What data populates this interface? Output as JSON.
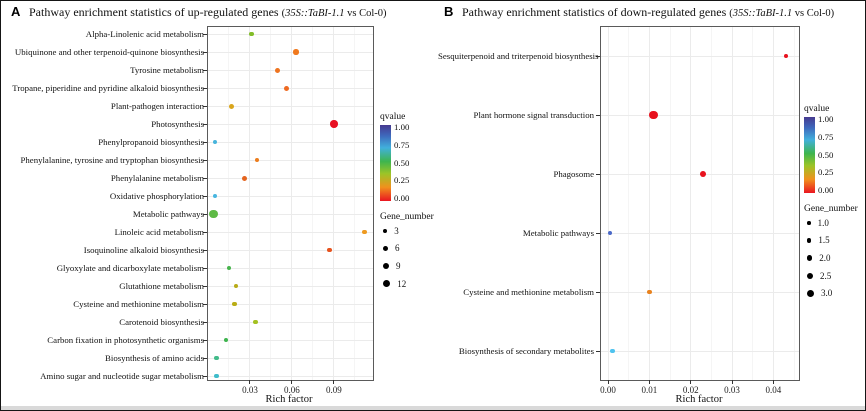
{
  "figure": {
    "background": "#ffffff",
    "colorbar_colors": [
      "#463a90",
      "#3e68bc",
      "#41b0dc",
      "#3eb54e",
      "#9cc427",
      "#f0911d",
      "#ea1621"
    ]
  },
  "chart_data": [
    {
      "type": "scatter",
      "panel_label": "A",
      "title": "Pathway enrichment statistics of up-regulated genes",
      "title_note_open": "(",
      "title_note_italic": "35S::TaBI-1.1",
      "title_note_rest": " vs Col-0)",
      "xlabel": "Rich factor",
      "x_range": [
        0,
        0.118
      ],
      "x_ticks": [
        {
          "v": 0.03,
          "label": "0.03"
        },
        {
          "v": 0.06,
          "label": "0.06"
        },
        {
          "v": 0.09,
          "label": "0.09"
        }
      ],
      "x_minor_ticks": [
        0.015,
        0.045,
        0.075,
        0.105
      ],
      "color_legend": {
        "title": "qvalue",
        "ticks": [
          "1.00",
          "0.75",
          "0.50",
          "0.25",
          "0.00"
        ]
      },
      "size_legend": {
        "title": "Gene_number",
        "items": [
          {
            "label": "3",
            "d": 4.2
          },
          {
            "label": "6",
            "d": 5.0
          },
          {
            "label": "9",
            "d": 6.0
          },
          {
            "label": "12",
            "d": 7.2
          }
        ]
      },
      "points": [
        {
          "category": "Alpha-Linolenic acid metabolism",
          "rich_factor": 0.031,
          "gene_number": 3,
          "qvalue": 0.3,
          "color": "#82bd28",
          "d": 4.6
        },
        {
          "category": "Ubiquinone and other terpenoid-quinone biosynthesis",
          "rich_factor": 0.063,
          "gene_number": 5,
          "qvalue": 0.1,
          "color": "#f0791e",
          "d": 5.2
        },
        {
          "category": "Tyrosine metabolism",
          "rich_factor": 0.05,
          "gene_number": 4,
          "qvalue": 0.1,
          "color": "#ee7420",
          "d": 5.0
        },
        {
          "category": "Tropane, piperidine and pyridine alkaloid biosynthesis",
          "rich_factor": 0.056,
          "gene_number": 4,
          "qvalue": 0.08,
          "color": "#ee6a22",
          "d": 5.0
        },
        {
          "category": "Plant-pathogen interaction",
          "rich_factor": 0.017,
          "gene_number": 4,
          "qvalue": 0.2,
          "color": "#d9a51c",
          "d": 5.0
        },
        {
          "category": "Photosynthesis",
          "rich_factor": 0.09,
          "gene_number": 9,
          "qvalue": 0.0,
          "color": "#e81123",
          "d": 7.4
        },
        {
          "category": "Phenylpropanoid biosynthesis",
          "rich_factor": 0.005,
          "gene_number": 3,
          "qvalue": 0.7,
          "color": "#47b4dc",
          "d": 4.4
        },
        {
          "category": "Phenylalanine, tyrosine and tryptophan biosynthesis",
          "rich_factor": 0.035,
          "gene_number": 3,
          "qvalue": 0.12,
          "color": "#ec7d1d",
          "d": 4.6
        },
        {
          "category": "Phenylalanine metabolism",
          "rich_factor": 0.026,
          "gene_number": 4,
          "qvalue": 0.08,
          "color": "#e4651f",
          "d": 5.0
        },
        {
          "category": "Oxidative phosphorylation",
          "rich_factor": 0.005,
          "gene_number": 3,
          "qvalue": 0.7,
          "color": "#48b6e0",
          "d": 4.4
        },
        {
          "category": "Metabolic pathways",
          "rich_factor": 0.004,
          "gene_number": 12,
          "qvalue": 0.4,
          "color": "#5eba46",
          "d": 8.6
        },
        {
          "category": "Linoleic acid metabolism",
          "rich_factor": 0.112,
          "gene_number": 3,
          "qvalue": 0.15,
          "color": "#ee9a20",
          "d": 4.6
        },
        {
          "category": "Isoquinoline alkaloid biosynthesis",
          "rich_factor": 0.087,
          "gene_number": 3,
          "qvalue": 0.05,
          "color": "#e7531e",
          "d": 4.6
        },
        {
          "category": "Glyoxylate and dicarboxylate metabolism",
          "rich_factor": 0.015,
          "gene_number": 3,
          "qvalue": 0.45,
          "color": "#47b44c",
          "d": 4.4
        },
        {
          "category": "Glutathione metabolism",
          "rich_factor": 0.02,
          "gene_number": 3,
          "qvalue": 0.22,
          "color": "#b8ab17",
          "d": 4.6
        },
        {
          "category": "Cysteine and methionine metabolism",
          "rich_factor": 0.019,
          "gene_number": 3,
          "qvalue": 0.22,
          "color": "#b9ad15",
          "d": 4.6
        },
        {
          "category": "Carotenoid biosynthesis",
          "rich_factor": 0.034,
          "gene_number": 3,
          "qvalue": 0.28,
          "color": "#a3c120",
          "d": 4.6
        },
        {
          "category": "Carbon fixation in photosynthetic organisms",
          "rich_factor": 0.013,
          "gene_number": 3,
          "qvalue": 0.45,
          "color": "#3eb44e",
          "d": 4.4
        },
        {
          "category": "Biosynthesis of amino acids",
          "rich_factor": 0.006,
          "gene_number": 3,
          "qvalue": 0.55,
          "color": "#43bb8a",
          "d": 4.6
        },
        {
          "category": "Amino sugar and nucleotide sugar metabolism",
          "rich_factor": 0.006,
          "gene_number": 3,
          "qvalue": 0.62,
          "color": "#3fbcca",
          "d": 4.6
        }
      ]
    },
    {
      "type": "scatter",
      "panel_label": "B",
      "title": "Pathway enrichment statistics of down-regulated genes",
      "title_note_open": "(",
      "title_note_italic": "35S::TaBI-1.1",
      "title_note_rest": " vs Col-0)",
      "xlabel": "Rich factor",
      "x_range": [
        -0.0017,
        0.0462
      ],
      "x_ticks": [
        {
          "v": 0.0,
          "label": "0.00"
        },
        {
          "v": 0.01,
          "label": "0.01"
        },
        {
          "v": 0.02,
          "label": "0.02"
        },
        {
          "v": 0.03,
          "label": "0.03"
        },
        {
          "v": 0.04,
          "label": "0.04"
        }
      ],
      "x_minor_ticks": [
        0.005,
        0.015,
        0.025,
        0.035,
        0.045
      ],
      "color_legend": {
        "title": "qvalue",
        "ticks": [
          "1.00",
          "0.75",
          "0.50",
          "0.25",
          "0.00"
        ]
      },
      "size_legend": {
        "title": "Gene_number",
        "items": [
          {
            "label": "1.0",
            "d": 3.6
          },
          {
            "label": "1.5",
            "d": 4.4
          },
          {
            "label": "2.0",
            "d": 5.2
          },
          {
            "label": "2.5",
            "d": 6.0
          },
          {
            "label": "3.0",
            "d": 7.0
          }
        ]
      },
      "points": [
        {
          "category": "Sesquiterpenoid and triterpenoid biosynthesis",
          "rich_factor": 0.043,
          "gene_number": 1,
          "qvalue": 0.0,
          "color": "#e8121e",
          "d": 4.4
        },
        {
          "category": "Plant hormone signal transduction",
          "rich_factor": 0.011,
          "gene_number": 3,
          "qvalue": 0.0,
          "color": "#e8121e",
          "d": 8.2
        },
        {
          "category": "Phagosome",
          "rich_factor": 0.023,
          "gene_number": 2,
          "qvalue": 0.0,
          "color": "#e8121e",
          "d": 5.8
        },
        {
          "category": "Metabolic pathways",
          "rich_factor": 0.0005,
          "gene_number": 1,
          "qvalue": 0.85,
          "color": "#4a69c8",
          "d": 4.8
        },
        {
          "category": "Cysteine and methionine metabolism",
          "rich_factor": 0.01,
          "gene_number": 1,
          "qvalue": 0.1,
          "color": "#e8821e",
          "d": 4.4
        },
        {
          "category": "Biosynthesis of secondary metabolites",
          "rich_factor": 0.001,
          "gene_number": 1,
          "qvalue": 0.7,
          "color": "#4fc3ef",
          "d": 4.8
        }
      ]
    }
  ]
}
